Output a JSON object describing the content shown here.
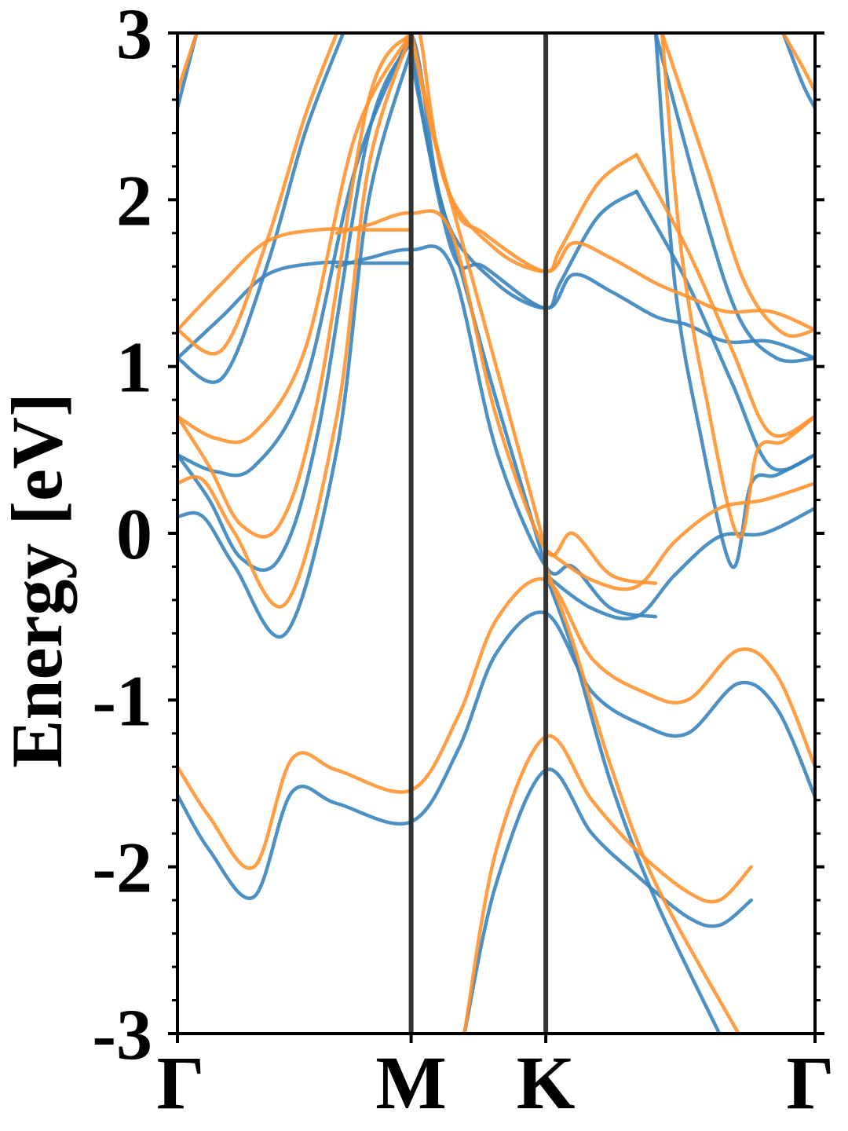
{
  "chart_data": {
    "type": "line",
    "title": "",
    "xlabel": "",
    "ylabel": "Energy [eV]",
    "ylim": [
      -3,
      3
    ],
    "xlim": [
      0,
      1
    ],
    "x_ticks": [
      {
        "label": "Γ",
        "value": 0.0
      },
      {
        "label": "M",
        "value": 0.3665
      },
      {
        "label": "K",
        "value": 0.5777
      },
      {
        "label": "Γ",
        "value": 1.0
      }
    ],
    "y_ticks": [
      {
        "label": "3",
        "value": 3
      },
      {
        "label": "2",
        "value": 2
      },
      {
        "label": "1",
        "value": 1
      },
      {
        "label": "0",
        "value": 0
      },
      {
        "label": "-1",
        "value": -1
      },
      {
        "label": "-2",
        "value": -2
      },
      {
        "label": "-3",
        "value": -3
      }
    ],
    "y_minor_step": 0.2,
    "vertical_lines": [
      0.3665,
      0.5777
    ],
    "colors": {
      "series_a": "#3a84bd",
      "series_b": "#ff9330",
      "vlines": "#333333",
      "axes": "#000000"
    },
    "legend": "none",
    "grid": false,
    "series": [
      {
        "color_key": "series_a",
        "bands": [
          {
            "x": [
              0,
              0.05,
              0.12,
              0.18,
              0.25,
              0.3665,
              0.44,
              0.5,
              0.5777,
              0.65,
              0.73,
              0.8,
              0.88,
              0.94,
              1.0
            ],
            "y": [
              -1.57,
              -1.9,
              -2.18,
              -1.55,
              -1.62,
              -1.73,
              -1.3,
              -0.72,
              -0.48,
              -0.95,
              -1.15,
              -1.2,
              -0.9,
              -1.05,
              -1.58
            ]
          },
          {
            "x": [
              0.45,
              0.5,
              0.5777,
              0.65,
              0.72,
              0.8,
              0.85,
              0.9
            ],
            "y": [
              -3.0,
              -2.1,
              -1.42,
              -1.8,
              -2.05,
              -2.3,
              -2.35,
              -2.2
            ]
          },
          {
            "x": [
              0.5777,
              0.62,
              0.68,
              0.75,
              0.85
            ],
            "y": [
              -0.25,
              -0.7,
              -1.5,
              -2.2,
              -3.0
            ]
          },
          {
            "x": [
              0,
              0.04,
              0.09,
              0.17,
              0.25,
              0.3,
              0.3665
            ],
            "y": [
              0.1,
              0.1,
              -0.2,
              -0.6,
              0.5,
              2.0,
              2.9
            ]
          },
          {
            "x": [
              0,
              0.05,
              0.1,
              0.16,
              0.22,
              0.3,
              0.3665
            ],
            "y": [
              0.47,
              0.2,
              -0.15,
              -0.15,
              0.6,
              2.4,
              2.95
            ]
          },
          {
            "x": [
              0,
              0.06,
              0.12,
              0.2,
              0.28,
              0.3665
            ],
            "y": [
              0.47,
              0.37,
              0.4,
              0.9,
              2.2,
              3.0
            ]
          },
          {
            "x": [
              0,
              0.07,
              0.14,
              0.2,
              0.26
            ],
            "y": [
              1.05,
              0.93,
              1.6,
              2.4,
              3.0
            ]
          },
          {
            "x": [
              0,
              0.07,
              0.14,
              0.22,
              0.3,
              0.3665
            ],
            "y": [
              1.05,
              1.3,
              1.55,
              1.62,
              1.62,
              1.62
            ]
          },
          {
            "x": [
              0,
              0.03
            ],
            "y": [
              2.55,
              3.0
            ]
          },
          {
            "x": [
              0.25,
              0.3,
              0.3665,
              0.43,
              0.5,
              0.5777,
              0.62,
              0.68,
              0.75
            ],
            "y": [
              1.6,
              1.65,
              1.7,
              1.6,
              0.5,
              -0.2,
              -0.2,
              -0.45,
              -0.5
            ]
          },
          {
            "x": [
              0.3665,
              0.43,
              0.48,
              0.5777,
              0.62,
              0.68,
              0.75,
              0.8,
              0.86,
              0.93,
              1.0
            ],
            "y": [
              2.85,
              1.7,
              1.6,
              1.35,
              1.55,
              1.45,
              1.3,
              1.25,
              1.15,
              1.15,
              1.05
            ]
          },
          {
            "x": [
              0.3665,
              0.4,
              0.45,
              0.5,
              0.5777
            ],
            "y": [
              2.95,
              2.2,
              1.5,
              0.8,
              -0.2
            ]
          },
          {
            "x": [
              0.3665,
              0.38,
              0.42,
              0.5,
              0.5777,
              0.6,
              0.66,
              0.72
            ],
            "y": [
              3.0,
              2.8,
              1.9,
              1.5,
              1.35,
              1.5,
              1.9,
              2.05
            ]
          },
          {
            "x": [
              0.5777,
              0.65,
              0.72,
              0.78,
              0.85,
              0.92,
              1.0
            ],
            "y": [
              -0.25,
              -0.45,
              -0.5,
              -0.25,
              -0.02,
              0.0,
              0.15
            ]
          },
          {
            "x": [
              0.75,
              0.78,
              0.82,
              0.87,
              0.9,
              0.94,
              1.0
            ],
            "y": [
              3.0,
              1.5,
              0.6,
              -0.2,
              0.3,
              0.35,
              0.47
            ]
          },
          {
            "x": [
              0.72,
              0.8,
              0.87,
              0.93,
              1.0
            ],
            "y": [
              2.05,
              1.5,
              0.9,
              0.4,
              0.47
            ]
          },
          {
            "x": [
              0.75,
              0.82,
              0.88,
              0.94,
              1.0
            ],
            "y": [
              3.0,
              2.0,
              1.3,
              1.05,
              1.05
            ]
          },
          {
            "x": [
              0.95,
              0.98,
              1.0
            ],
            "y": [
              3.0,
              2.7,
              2.55
            ]
          }
        ]
      },
      {
        "color_key": "series_b",
        "bands": [
          {
            "x": [
              0,
              0.05,
              0.12,
              0.18,
              0.25,
              0.3665,
              0.44,
              0.5,
              0.5777,
              0.65,
              0.73,
              0.8,
              0.88,
              0.94,
              1.0
            ],
            "y": [
              -1.4,
              -1.7,
              -2.0,
              -1.35,
              -1.42,
              -1.54,
              -1.1,
              -0.52,
              -0.28,
              -0.75,
              -0.95,
              -1.0,
              -0.7,
              -0.85,
              -1.4
            ]
          },
          {
            "x": [
              0.45,
              0.5,
              0.5777,
              0.65,
              0.72,
              0.8,
              0.85,
              0.9
            ],
            "y": [
              -3.0,
              -1.9,
              -1.22,
              -1.6,
              -1.9,
              -2.15,
              -2.2,
              -2.0
            ]
          },
          {
            "x": [
              0.5777,
              0.62,
              0.68,
              0.75,
              0.88
            ],
            "y": [
              -0.2,
              -0.65,
              -1.4,
              -2.1,
              -3.0
            ]
          },
          {
            "x": [
              0,
              0.04,
              0.09,
              0.17,
              0.25,
              0.3,
              0.3665
            ],
            "y": [
              0.3,
              0.32,
              0.0,
              -0.42,
              0.7,
              2.2,
              3.0
            ]
          },
          {
            "x": [
              0,
              0.05,
              0.1,
              0.16,
              0.22,
              0.3,
              0.3665
            ],
            "y": [
              0.7,
              0.4,
              0.05,
              0.05,
              0.8,
              2.6,
              3.0
            ]
          },
          {
            "x": [
              0,
              0.06,
              0.12,
              0.2,
              0.28,
              0.3665
            ],
            "y": [
              0.7,
              0.57,
              0.6,
              1.1,
              2.4,
              3.0
            ]
          },
          {
            "x": [
              0,
              0.07,
              0.14,
              0.2,
              0.25
            ],
            "y": [
              1.22,
              1.1,
              1.75,
              2.5,
              3.0
            ]
          },
          {
            "x": [
              0,
              0.07,
              0.14,
              0.22,
              0.3,
              0.3665
            ],
            "y": [
              1.22,
              1.5,
              1.75,
              1.82,
              1.82,
              1.82
            ]
          },
          {
            "x": [
              0,
              0.03
            ],
            "y": [
              2.65,
              3.0
            ]
          },
          {
            "x": [
              0.25,
              0.3,
              0.3665,
              0.43,
              0.5,
              0.5777,
              0.62,
              0.68,
              0.75
            ],
            "y": [
              1.8,
              1.85,
              1.92,
              1.8,
              0.7,
              -0.1,
              0.0,
              -0.25,
              -0.3
            ]
          },
          {
            "x": [
              0.3665,
              0.43,
              0.48,
              0.5777,
              0.62,
              0.68,
              0.75,
              0.8,
              0.86,
              0.93,
              1.0
            ],
            "y": [
              3.0,
              2.0,
              1.8,
              1.57,
              1.74,
              1.65,
              1.5,
              1.42,
              1.33,
              1.33,
              1.22
            ]
          },
          {
            "x": [
              0.3665,
              0.4,
              0.45,
              0.5,
              0.5777
            ],
            "y": [
              3.0,
              2.4,
              1.7,
              1.0,
              -0.1
            ]
          },
          {
            "x": [
              0.3665,
              0.38,
              0.42,
              0.5,
              0.5777,
              0.6,
              0.66,
              0.72
            ],
            "y": [
              3.0,
              3.0,
              2.1,
              1.7,
              1.57,
              1.7,
              2.1,
              2.27
            ]
          },
          {
            "x": [
              0.5777,
              0.65,
              0.72,
              0.78,
              0.85,
              0.92,
              1.0
            ],
            "y": [
              -0.1,
              -0.28,
              -0.32,
              -0.05,
              0.15,
              0.2,
              0.3
            ]
          },
          {
            "x": [
              0.76,
              0.79,
              0.83,
              0.88,
              0.91,
              0.95,
              1.0
            ],
            "y": [
              3.0,
              1.7,
              0.8,
              -0.02,
              0.5,
              0.55,
              0.7
            ]
          },
          {
            "x": [
              0.72,
              0.8,
              0.87,
              0.93,
              1.0
            ],
            "y": [
              2.27,
              1.7,
              1.1,
              0.6,
              0.7
            ]
          },
          {
            "x": [
              0.76,
              0.83,
              0.89,
              0.95,
              1.0
            ],
            "y": [
              3.0,
              2.2,
              1.5,
              1.2,
              1.22
            ]
          },
          {
            "x": [
              0.95,
              0.98,
              1.0
            ],
            "y": [
              3.0,
              2.8,
              2.65
            ]
          }
        ]
      }
    ]
  }
}
